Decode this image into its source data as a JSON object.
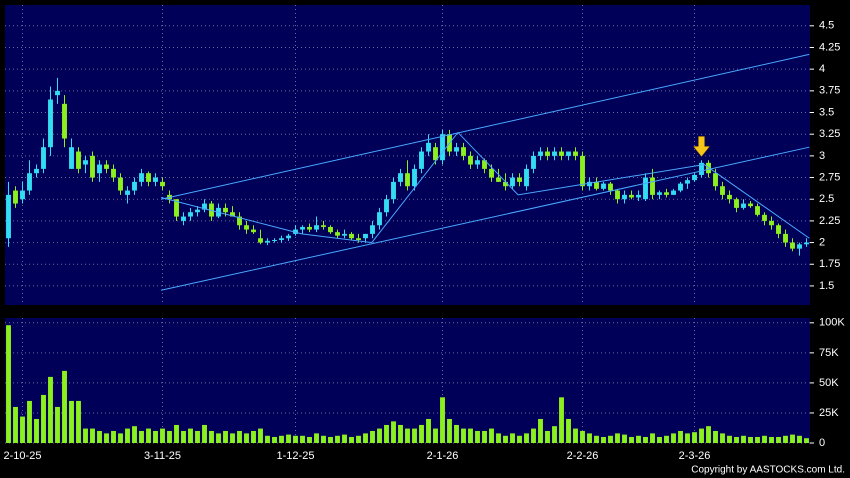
{
  "chart_data": {
    "type": "candlestick",
    "source": "Copyright by AASTOCKS.com Ltd.",
    "up_color": "#33dcf0",
    "down_color": "#8cf01e",
    "background": "#000058",
    "grid": true,
    "categories": [
      null,
      null,
      "2-10-25",
      null,
      null,
      null,
      null,
      null,
      null,
      null,
      null,
      null,
      null,
      null,
      null,
      null,
      null,
      null,
      null,
      null,
      null,
      null,
      "3-11-25",
      null,
      null,
      null,
      null,
      null,
      null,
      null,
      null,
      null,
      null,
      null,
      null,
      null,
      null,
      null,
      null,
      null,
      null,
      "1-12-25",
      null,
      null,
      null,
      null,
      null,
      null,
      null,
      null,
      null,
      null,
      null,
      null,
      null,
      null,
      null,
      null,
      null,
      null,
      null,
      null,
      "2-1-26",
      null,
      null,
      null,
      null,
      null,
      null,
      null,
      null,
      null,
      null,
      null,
      null,
      null,
      null,
      null,
      null,
      null,
      null,
      null,
      "2-2-26",
      null,
      null,
      null,
      null,
      null,
      null,
      null,
      null,
      null,
      null,
      null,
      null,
      null,
      null,
      null,
      "2-3-26",
      null,
      null,
      null,
      null,
      null,
      null,
      null,
      null,
      null,
      null,
      null,
      null,
      null,
      null,
      null,
      null
    ],
    "open": [
      2.05,
      2.6,
      2.5,
      2.6,
      2.8,
      2.85,
      3.1,
      3.7,
      3.6,
      2.85,
      3.05,
      2.9,
      3.0,
      2.8,
      2.9,
      2.85,
      2.75,
      2.55,
      2.6,
      2.7,
      2.8,
      2.7,
      2.7,
      2.55,
      2.5,
      2.25,
      2.3,
      2.35,
      2.38,
      2.45,
      2.3,
      2.4,
      2.35,
      2.3,
      2.2,
      2.15,
      2.05,
      2.0,
      2.02,
      2.03,
      2.05,
      2.1,
      2.15,
      2.18,
      2.15,
      2.2,
      2.18,
      2.12,
      2.08,
      2.1,
      2.05,
      2.05,
      2.1,
      2.2,
      2.35,
      2.5,
      2.7,
      2.8,
      2.65,
      2.85,
      3.05,
      3.1,
      2.95,
      3.25,
      3.05,
      3.1,
      3.0,
      2.9,
      2.95,
      2.85,
      2.75,
      2.7,
      2.65,
      2.75,
      2.65,
      2.85,
      3.0,
      3.05,
      3.0,
      3.05,
      3.0,
      3.05,
      3.0,
      2.65,
      2.7,
      2.62,
      2.68,
      2.6,
      2.5,
      2.55,
      2.52,
      2.5,
      2.75,
      2.55,
      2.58,
      2.55,
      2.6,
      2.68,
      2.72,
      2.78,
      2.92,
      2.8,
      2.65,
      2.55,
      2.5,
      2.4,
      2.45,
      2.42,
      2.32,
      2.25,
      2.2,
      2.1,
      2.0,
      1.93,
      1.98
    ],
    "high": [
      2.7,
      2.65,
      2.7,
      2.95,
      2.9,
      3.2,
      3.8,
      3.9,
      3.7,
      3.2,
      3.1,
      3.0,
      3.05,
      2.95,
      2.95,
      2.9,
      2.8,
      2.65,
      2.75,
      2.85,
      2.82,
      2.8,
      2.75,
      2.6,
      2.5,
      2.35,
      2.4,
      2.42,
      2.5,
      2.48,
      2.45,
      2.45,
      2.42,
      2.35,
      2.25,
      2.2,
      2.15,
      2.05,
      2.05,
      2.08,
      2.1,
      2.2,
      2.2,
      2.22,
      2.3,
      2.25,
      2.2,
      2.15,
      2.15,
      2.12,
      2.1,
      2.1,
      2.25,
      2.4,
      2.55,
      2.75,
      2.85,
      2.95,
      2.9,
      3.1,
      3.25,
      3.15,
      3.3,
      3.3,
      3.15,
      3.15,
      3.05,
      3.0,
      2.97,
      2.9,
      2.85,
      2.8,
      2.8,
      2.8,
      2.9,
      3.05,
      3.1,
      3.1,
      3.1,
      3.1,
      3.05,
      3.1,
      3.05,
      2.75,
      2.75,
      2.7,
      2.7,
      2.62,
      2.6,
      2.6,
      2.6,
      2.8,
      2.85,
      2.6,
      2.62,
      2.62,
      2.7,
      2.75,
      2.8,
      2.95,
      2.95,
      2.85,
      2.7,
      2.6,
      2.52,
      2.5,
      2.48,
      2.45,
      2.35,
      2.3,
      2.22,
      2.15,
      2.05,
      2.0,
      2.05
    ],
    "low": [
      1.95,
      2.4,
      2.45,
      2.55,
      2.75,
      2.8,
      3.0,
      3.6,
      3.1,
      2.85,
      2.8,
      2.8,
      2.7,
      2.7,
      2.8,
      2.7,
      2.55,
      2.45,
      2.55,
      2.65,
      2.65,
      2.65,
      2.6,
      2.45,
      2.25,
      2.2,
      2.25,
      2.3,
      2.35,
      2.25,
      2.28,
      2.3,
      2.3,
      2.15,
      2.1,
      2.1,
      1.98,
      1.97,
      2.0,
      2.0,
      2.02,
      2.08,
      2.1,
      2.12,
      2.12,
      2.15,
      2.1,
      2.05,
      2.05,
      2.03,
      2.0,
      2.0,
      2.05,
      2.15,
      2.3,
      2.45,
      2.65,
      2.6,
      2.6,
      2.8,
      3.0,
      2.9,
      2.9,
      3.0,
      3.0,
      2.95,
      2.85,
      2.85,
      2.8,
      2.7,
      2.7,
      2.6,
      2.62,
      2.65,
      2.6,
      2.8,
      2.95,
      2.95,
      2.95,
      2.95,
      2.95,
      2.95,
      2.6,
      2.6,
      2.6,
      2.6,
      2.55,
      2.45,
      2.45,
      2.5,
      2.48,
      2.48,
      2.5,
      2.5,
      2.52,
      2.55,
      2.58,
      2.62,
      2.7,
      2.75,
      2.75,
      2.6,
      2.5,
      2.45,
      2.35,
      2.38,
      2.4,
      2.3,
      2.2,
      2.15,
      2.05,
      1.95,
      1.9,
      1.85,
      1.95
    ],
    "close": [
      2.55,
      2.45,
      2.6,
      2.8,
      2.85,
      3.1,
      3.65,
      3.75,
      3.2,
      3.1,
      2.85,
      2.95,
      2.75,
      2.9,
      2.85,
      2.75,
      2.6,
      2.6,
      2.7,
      2.8,
      2.7,
      2.75,
      2.65,
      2.5,
      2.3,
      2.3,
      2.35,
      2.38,
      2.45,
      2.3,
      2.4,
      2.35,
      2.3,
      2.2,
      2.15,
      2.12,
      2.0,
      2.02,
      2.03,
      2.05,
      2.08,
      2.15,
      2.18,
      2.15,
      2.2,
      2.18,
      2.12,
      2.08,
      2.1,
      2.05,
      2.03,
      2.1,
      2.2,
      2.35,
      2.5,
      2.7,
      2.8,
      2.65,
      2.85,
      3.05,
      3.15,
      2.95,
      3.25,
      3.05,
      3.1,
      3.0,
      2.9,
      2.95,
      2.85,
      2.75,
      2.7,
      2.65,
      2.75,
      2.7,
      2.85,
      3.0,
      3.05,
      3.0,
      3.05,
      3.0,
      3.05,
      3.0,
      2.65,
      2.7,
      2.62,
      2.68,
      2.6,
      2.5,
      2.55,
      2.52,
      2.55,
      2.75,
      2.55,
      2.58,
      2.55,
      2.6,
      2.68,
      2.72,
      2.78,
      2.92,
      2.8,
      2.65,
      2.55,
      2.5,
      2.4,
      2.45,
      2.42,
      2.32,
      2.25,
      2.2,
      2.1,
      2.0,
      1.93,
      1.98,
      2.0
    ],
    "ylim": [
      1.28,
      4.74
    ],
    "yticks": [
      1.5,
      1.75,
      2,
      2.25,
      2.5,
      2.75,
      3,
      3.25,
      3.5,
      3.75,
      4,
      4.25,
      4.5
    ],
    "trendline_color": "#4aa8ff",
    "trendlines": [
      {
        "x": [
          21.8,
          114.4
        ],
        "y": [
          2.5,
          4.17
        ]
      },
      {
        "x": [
          21.8,
          114.4
        ],
        "y": [
          1.45,
          3.1
        ]
      },
      {
        "x": [
          21.8,
          41.9,
          51.9,
          64.2,
          72.8,
          99.4,
          114.4
        ],
        "y": [
          2.52,
          2.1,
          2.0,
          3.27,
          2.55,
          2.9,
          2.05
        ]
      }
    ],
    "arrow": {
      "x": 99,
      "y": 2.97,
      "color": "#f5c518"
    },
    "volume": {
      "color": "#8cf01e",
      "values": [
        98000,
        30000,
        22000,
        35000,
        20000,
        40000,
        55000,
        30000,
        60000,
        35000,
        35000,
        12000,
        12000,
        10000,
        8000,
        10000,
        8000,
        12000,
        14000,
        10000,
        12000,
        10000,
        12000,
        10000,
        15000,
        10000,
        12000,
        10000,
        15000,
        10000,
        8000,
        10000,
        8000,
        10000,
        8000,
        10000,
        12000,
        6000,
        5000,
        6000,
        7000,
        6000,
        6000,
        5000,
        8000,
        6000,
        5000,
        6000,
        7000,
        5000,
        6000,
        8000,
        10000,
        12000,
        15000,
        18000,
        15000,
        12000,
        12000,
        15000,
        20000,
        12000,
        38000,
        20000,
        15000,
        12000,
        12000,
        10000,
        10000,
        12000,
        8000,
        6000,
        8000,
        6000,
        8000,
        12000,
        20000,
        10000,
        14000,
        38000,
        20000,
        12000,
        10000,
        8000,
        6000,
        5000,
        6000,
        8000,
        7000,
        5000,
        6000,
        5000,
        8000,
        5000,
        6000,
        8000,
        10000,
        8000,
        9000,
        12000,
        14000,
        10000,
        8000,
        6000,
        5000,
        6000,
        5000,
        5000,
        6000,
        5000,
        5000,
        6000,
        7000,
        6000,
        4000
      ],
      "ylim": [
        0,
        104000
      ],
      "yticks": [
        0,
        {
          "value": 25000,
          "label": "25K"
        },
        {
          "value": 50000,
          "label": "50K"
        },
        {
          "value": 75000,
          "label": "75K"
        },
        {
          "value": 100000,
          "label": "100K"
        }
      ]
    }
  }
}
